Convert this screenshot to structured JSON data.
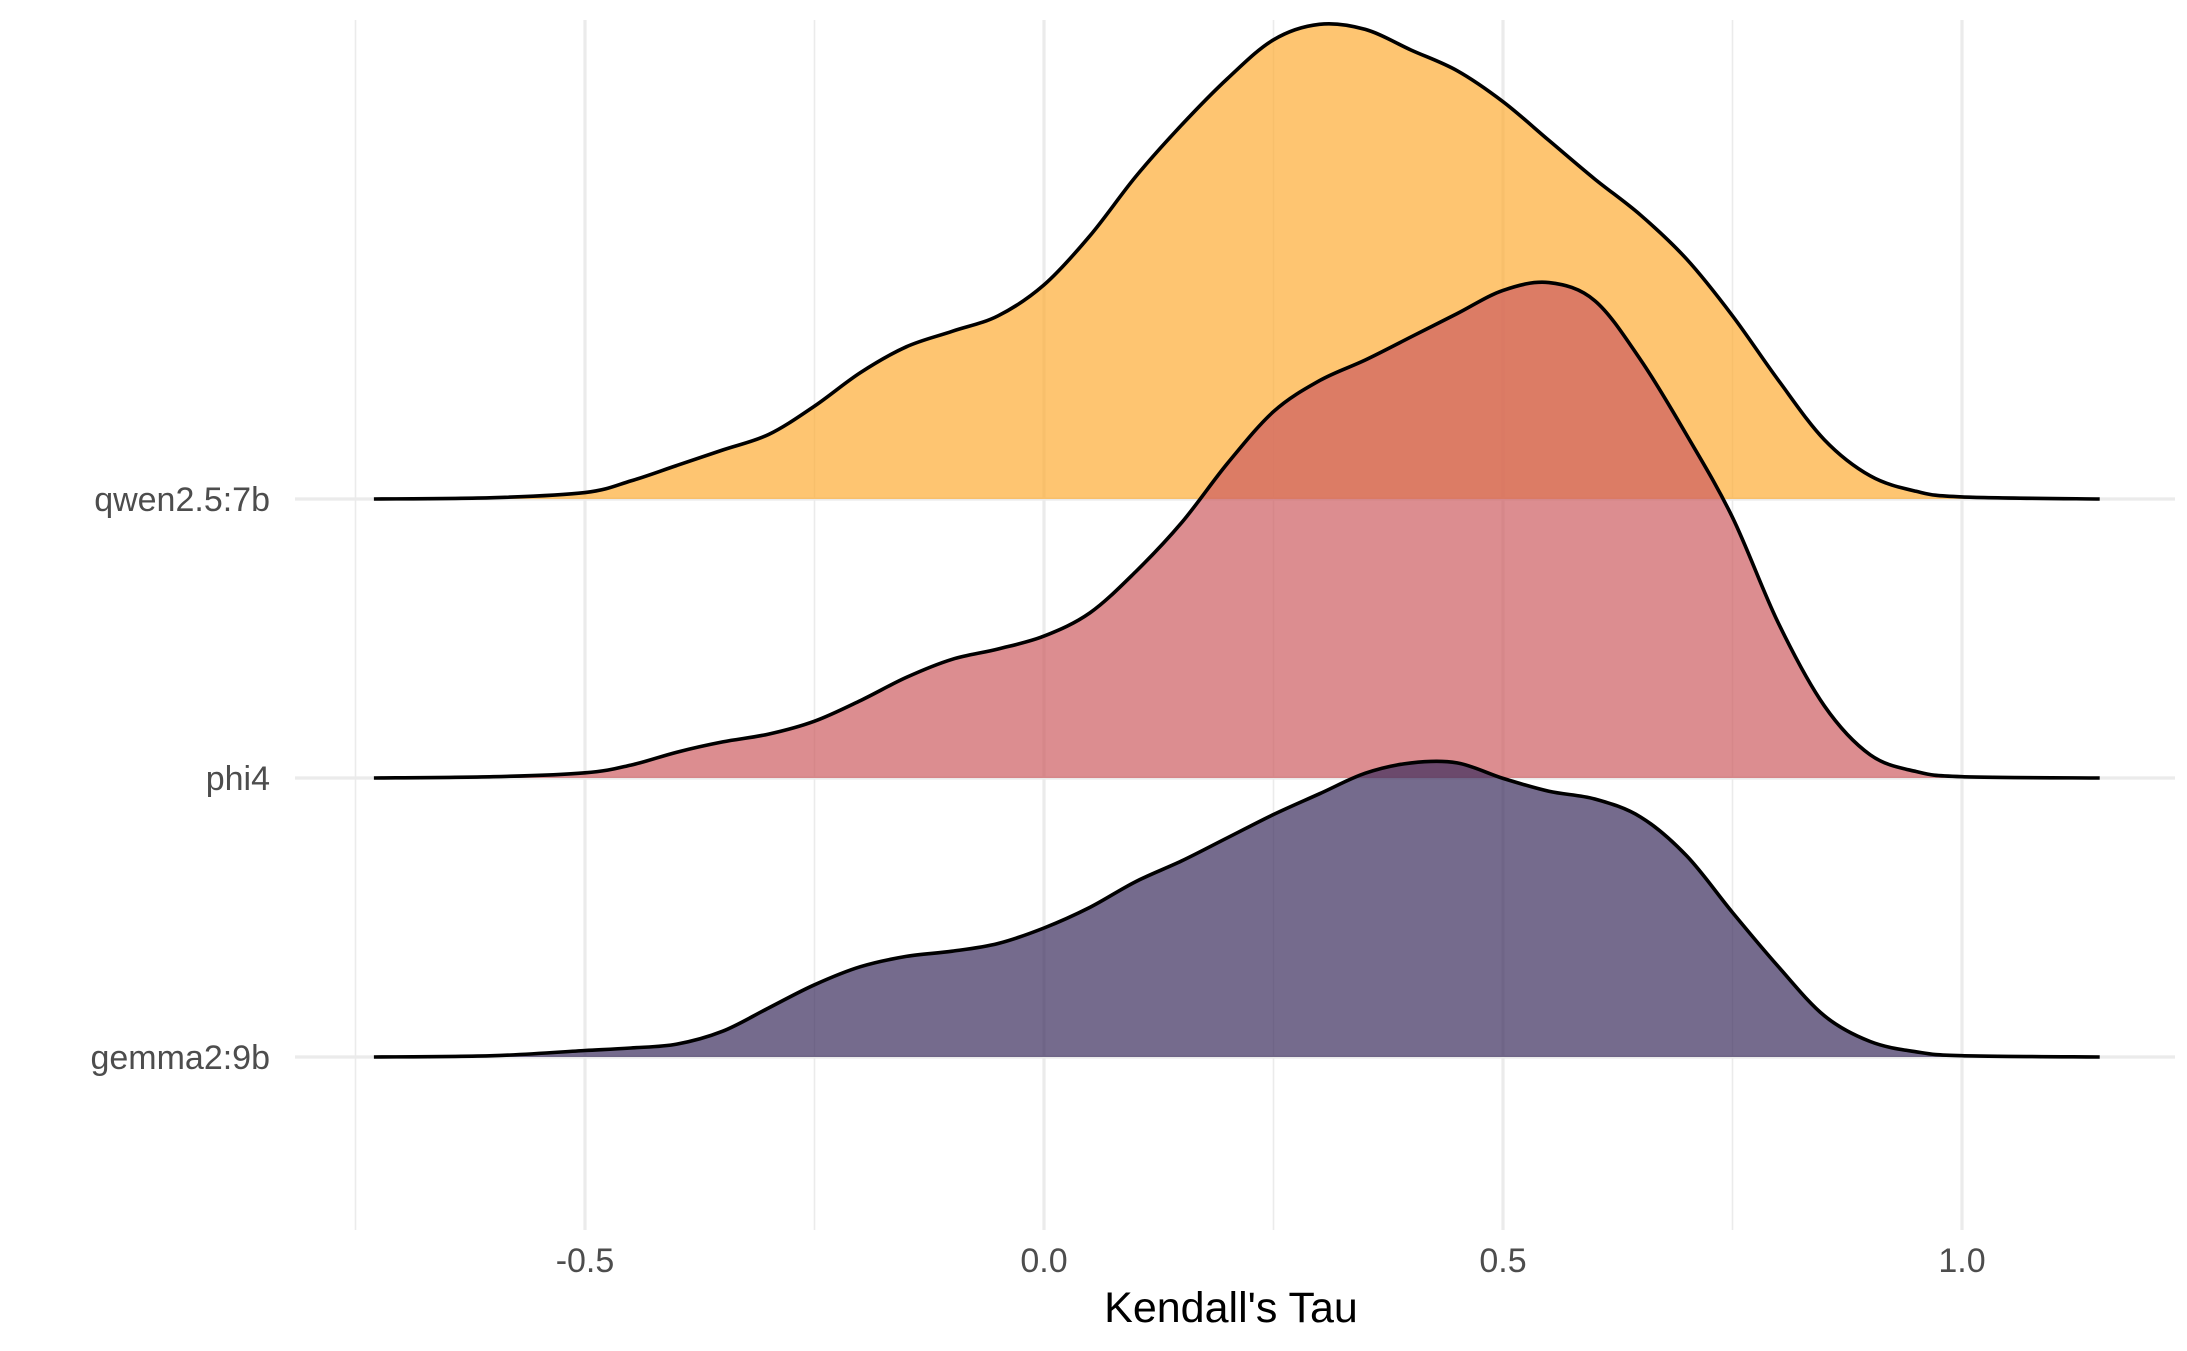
{
  "chart_data": {
    "type": "ridgeline",
    "title": "",
    "xlabel": "Kendall's Tau",
    "ylabel": "",
    "xlim": [
      -0.75,
      1.15
    ],
    "x_ticks": [
      -0.5,
      0.0,
      0.5,
      1.0
    ],
    "x_tick_labels": [
      "-0.5",
      "0.0",
      "0.5",
      "1.0"
    ],
    "x_minor_ticks": [
      -0.75,
      -0.25,
      0.25,
      0.75
    ],
    "grid": true,
    "categories": [
      "gemma2:9b",
      "phi4",
      "qwen2.5:7b"
    ],
    "series": [
      {
        "name": "gemma2:9b",
        "color": "#3a2c5c",
        "points": [
          [
            -0.73,
            0.0
          ],
          [
            -0.6,
            0.005
          ],
          [
            -0.5,
            0.025
          ],
          [
            -0.45,
            0.035
          ],
          [
            -0.4,
            0.05
          ],
          [
            -0.35,
            0.1
          ],
          [
            -0.3,
            0.19
          ],
          [
            -0.25,
            0.28
          ],
          [
            -0.2,
            0.35
          ],
          [
            -0.15,
            0.39
          ],
          [
            -0.1,
            0.41
          ],
          [
            -0.05,
            0.44
          ],
          [
            0.0,
            0.5
          ],
          [
            0.05,
            0.58
          ],
          [
            0.1,
            0.68
          ],
          [
            0.15,
            0.76
          ],
          [
            0.2,
            0.85
          ],
          [
            0.25,
            0.94
          ],
          [
            0.3,
            1.02
          ],
          [
            0.35,
            1.1
          ],
          [
            0.4,
            1.14
          ],
          [
            0.45,
            1.14
          ],
          [
            0.5,
            1.08
          ],
          [
            0.55,
            1.03
          ],
          [
            0.6,
            1.0
          ],
          [
            0.65,
            0.93
          ],
          [
            0.7,
            0.78
          ],
          [
            0.75,
            0.56
          ],
          [
            0.8,
            0.35
          ],
          [
            0.85,
            0.16
          ],
          [
            0.9,
            0.06
          ],
          [
            0.95,
            0.02
          ],
          [
            1.0,
            0.005
          ],
          [
            1.15,
            0.0
          ]
        ]
      },
      {
        "name": "phi4",
        "color": "#cd5c61",
        "points": [
          [
            -0.73,
            0.0
          ],
          [
            -0.6,
            0.005
          ],
          [
            -0.5,
            0.02
          ],
          [
            -0.45,
            0.05
          ],
          [
            -0.4,
            0.1
          ],
          [
            -0.35,
            0.14
          ],
          [
            -0.3,
            0.17
          ],
          [
            -0.25,
            0.22
          ],
          [
            -0.2,
            0.3
          ],
          [
            -0.15,
            0.39
          ],
          [
            -0.1,
            0.46
          ],
          [
            -0.05,
            0.5
          ],
          [
            0.0,
            0.55
          ],
          [
            0.05,
            0.64
          ],
          [
            0.1,
            0.8
          ],
          [
            0.15,
            0.99
          ],
          [
            0.2,
            1.22
          ],
          [
            0.25,
            1.42
          ],
          [
            0.3,
            1.54
          ],
          [
            0.35,
            1.62
          ],
          [
            0.4,
            1.71
          ],
          [
            0.45,
            1.8
          ],
          [
            0.5,
            1.89
          ],
          [
            0.55,
            1.92
          ],
          [
            0.6,
            1.85
          ],
          [
            0.65,
            1.62
          ],
          [
            0.7,
            1.33
          ],
          [
            0.75,
            1.01
          ],
          [
            0.8,
            0.6
          ],
          [
            0.85,
            0.28
          ],
          [
            0.9,
            0.09
          ],
          [
            0.95,
            0.025
          ],
          [
            1.0,
            0.005
          ],
          [
            1.15,
            0.0
          ]
        ]
      },
      {
        "name": "qwen2.5:7b",
        "color": "#fdac34",
        "points": [
          [
            -0.73,
            0.0
          ],
          [
            -0.6,
            0.005
          ],
          [
            -0.5,
            0.025
          ],
          [
            -0.45,
            0.07
          ],
          [
            -0.4,
            0.13
          ],
          [
            -0.35,
            0.19
          ],
          [
            -0.3,
            0.25
          ],
          [
            -0.25,
            0.36
          ],
          [
            -0.2,
            0.49
          ],
          [
            -0.15,
            0.59
          ],
          [
            -0.1,
            0.65
          ],
          [
            -0.05,
            0.71
          ],
          [
            0.0,
            0.83
          ],
          [
            0.05,
            1.02
          ],
          [
            0.1,
            1.25
          ],
          [
            0.15,
            1.45
          ],
          [
            0.2,
            1.63
          ],
          [
            0.25,
            1.78
          ],
          [
            0.3,
            1.84
          ],
          [
            0.35,
            1.82
          ],
          [
            0.4,
            1.74
          ],
          [
            0.45,
            1.66
          ],
          [
            0.5,
            1.54
          ],
          [
            0.55,
            1.39
          ],
          [
            0.6,
            1.24
          ],
          [
            0.65,
            1.1
          ],
          [
            0.7,
            0.93
          ],
          [
            0.75,
            0.71
          ],
          [
            0.8,
            0.46
          ],
          [
            0.85,
            0.23
          ],
          [
            0.9,
            0.09
          ],
          [
            0.95,
            0.03
          ],
          [
            1.0,
            0.008
          ],
          [
            1.15,
            0.0
          ]
        ]
      }
    ]
  }
}
